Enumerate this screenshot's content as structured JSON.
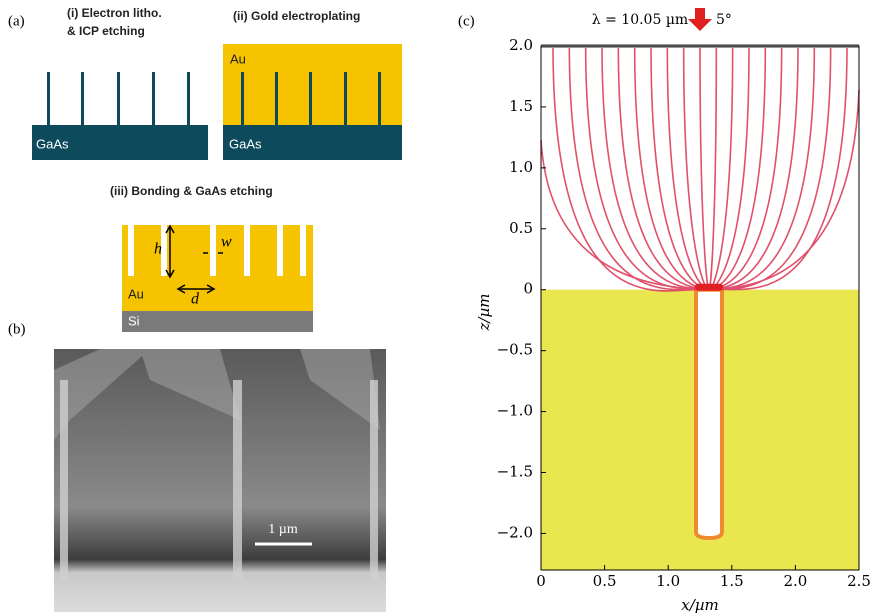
{
  "panel_a": {
    "label": "(a)",
    "step1_title": [
      "(i) Electron litho.",
      "& ICP etching"
    ],
    "step2_title": "(ii) Gold electroplating",
    "step1_substrate": "GaAs",
    "step2_metal": "Au",
    "step2_substrate": "GaAs",
    "step3_title": "(iii) Bonding & GaAs etching",
    "height_symbol": "h",
    "width_symbol": "w",
    "period_symbol": "d",
    "step3_metal": "Au",
    "step3_substrate": "Si"
  },
  "panel_b": {
    "label": "(b)",
    "scale_bar": "1 µm"
  },
  "chart_data": {
    "type": "field",
    "panel_label": "(c)",
    "title": "λ = 10.05 µm",
    "angle_label": "5°",
    "xlabel": "x/µm",
    "ylabel": "z/µm",
    "xlim": [
      0,
      2.5
    ],
    "ylim": [
      -2.3,
      2
    ],
    "xticks": [
      0,
      0.5,
      {
        "value": 1,
        "label": "1.0"
      },
      1.5,
      {
        "value": 2,
        "label": "2.0"
      },
      2.5
    ],
    "yticks": [
      {
        "value": 2,
        "label": "2.0"
      },
      1.5,
      {
        "value": 1,
        "label": "1.0"
      },
      0.5,
      0,
      {
        "value": -0.5,
        "label": "−0.5"
      },
      {
        "value": -1,
        "label": "−1.0"
      },
      {
        "value": -1.5,
        "label": "−1.5"
      },
      {
        "value": -2,
        "label": "−2.0"
      }
    ],
    "line_color": "#e0506a",
    "metal_color": "#e9e64e"
  }
}
